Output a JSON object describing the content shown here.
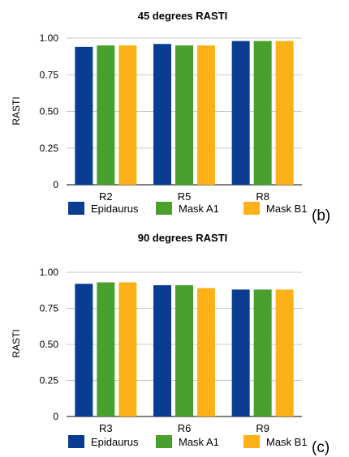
{
  "chart_data": [
    {
      "type": "bar",
      "title": "45 degrees RASTI",
      "ylabel": "RASTI",
      "xlabel": "",
      "panel_label": "(b)",
      "categories": [
        "R2",
        "R5",
        "R8"
      ],
      "series": [
        {
          "name": "Epidaurus",
          "values": [
            0.94,
            0.96,
            0.98
          ]
        },
        {
          "name": "Mask A1",
          "values": [
            0.95,
            0.95,
            0.98
          ]
        },
        {
          "name": "Mask B1",
          "values": [
            0.95,
            0.95,
            0.98
          ]
        }
      ],
      "ylim": [
        0,
        1.0
      ],
      "yticks": [
        "0",
        "0.25",
        "0.50",
        "0.75",
        "1.00"
      ],
      "grid": true,
      "legend_position": "bottom"
    },
    {
      "type": "bar",
      "title": "90 degrees RASTI",
      "ylabel": "RASTI",
      "xlabel": "",
      "panel_label": "(c)",
      "categories": [
        "R3",
        "R6",
        "R9"
      ],
      "series": [
        {
          "name": "Epidaurus",
          "values": [
            0.92,
            0.91,
            0.88
          ]
        },
        {
          "name": "Mask A1",
          "values": [
            0.93,
            0.91,
            0.88
          ]
        },
        {
          "name": "Mask B1",
          "values": [
            0.93,
            0.89,
            0.88
          ]
        }
      ],
      "ylim": [
        0,
        1.0
      ],
      "yticks": [
        "0",
        "0.25",
        "0.50",
        "0.75",
        "1.00"
      ],
      "grid": true,
      "legend_position": "bottom"
    }
  ],
  "colors": {
    "Epidaurus": "#0a3d91",
    "Mask A1": "#4aa02c",
    "Mask B1": "#fbb117",
    "grid": "#c8c8c8",
    "axis": "#333333",
    "text": "#000000"
  }
}
